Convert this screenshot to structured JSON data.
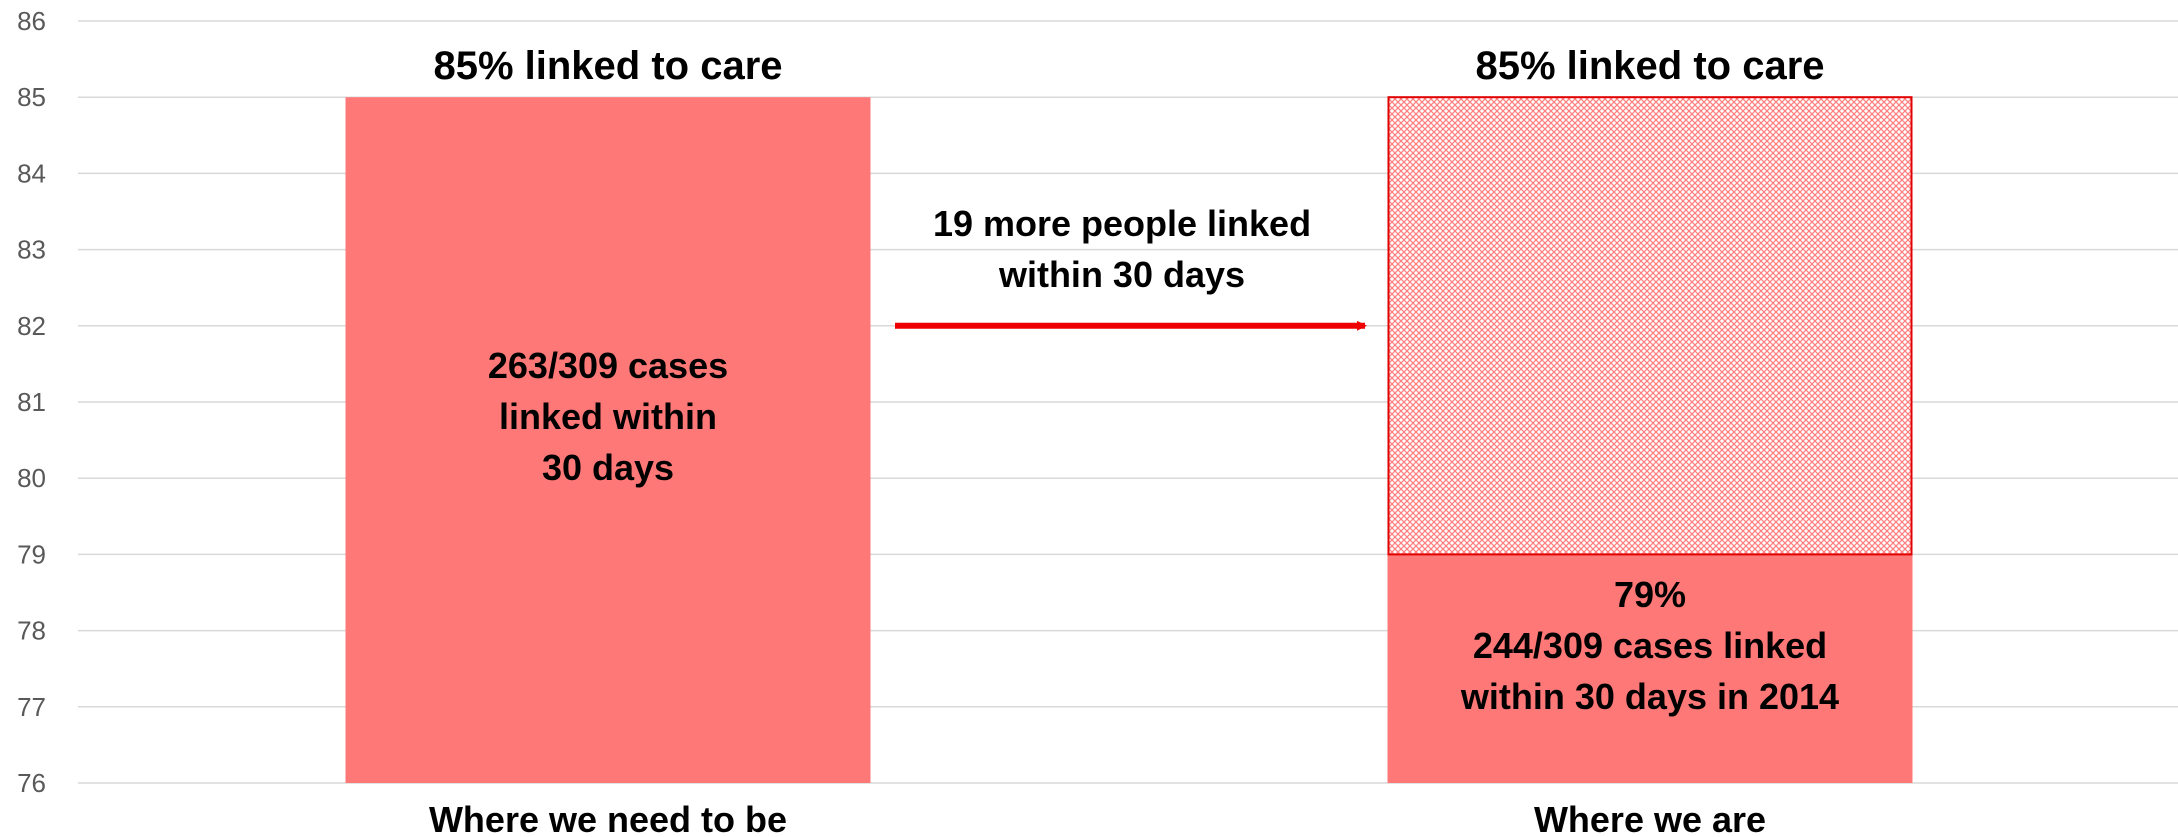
{
  "chart_data": {
    "type": "bar",
    "ylim": [
      76,
      86
    ],
    "y_ticks": [
      "76",
      "77",
      "78",
      "79",
      "80",
      "81",
      "82",
      "83",
      "84",
      "85",
      "86"
    ],
    "grid": true,
    "categories": [
      "Where we need to be",
      "Where we are"
    ],
    "bars": [
      {
        "category": "Where we need to be",
        "value": 85,
        "top_label": "85% linked to care",
        "inner_label": [
          "263/309 cases",
          "linked within",
          "30 days"
        ]
      },
      {
        "category": "Where we are",
        "value": 79,
        "gap_value": 85,
        "top_label": "85% linked to care",
        "inner_label": [
          "79%",
          "244/309 cases linked",
          "within 30 days in 2014"
        ]
      }
    ],
    "annotation": {
      "text": [
        "19 more people linked",
        "within 30 days"
      ],
      "arrow_y": 82
    }
  },
  "colors": {
    "bar": "#ff7878",
    "gap_fill": "#ff9a9a",
    "gap_border": "#e00000",
    "arrow": "#ee0000",
    "grid": "#d9d9d9",
    "tick": "#595959"
  }
}
